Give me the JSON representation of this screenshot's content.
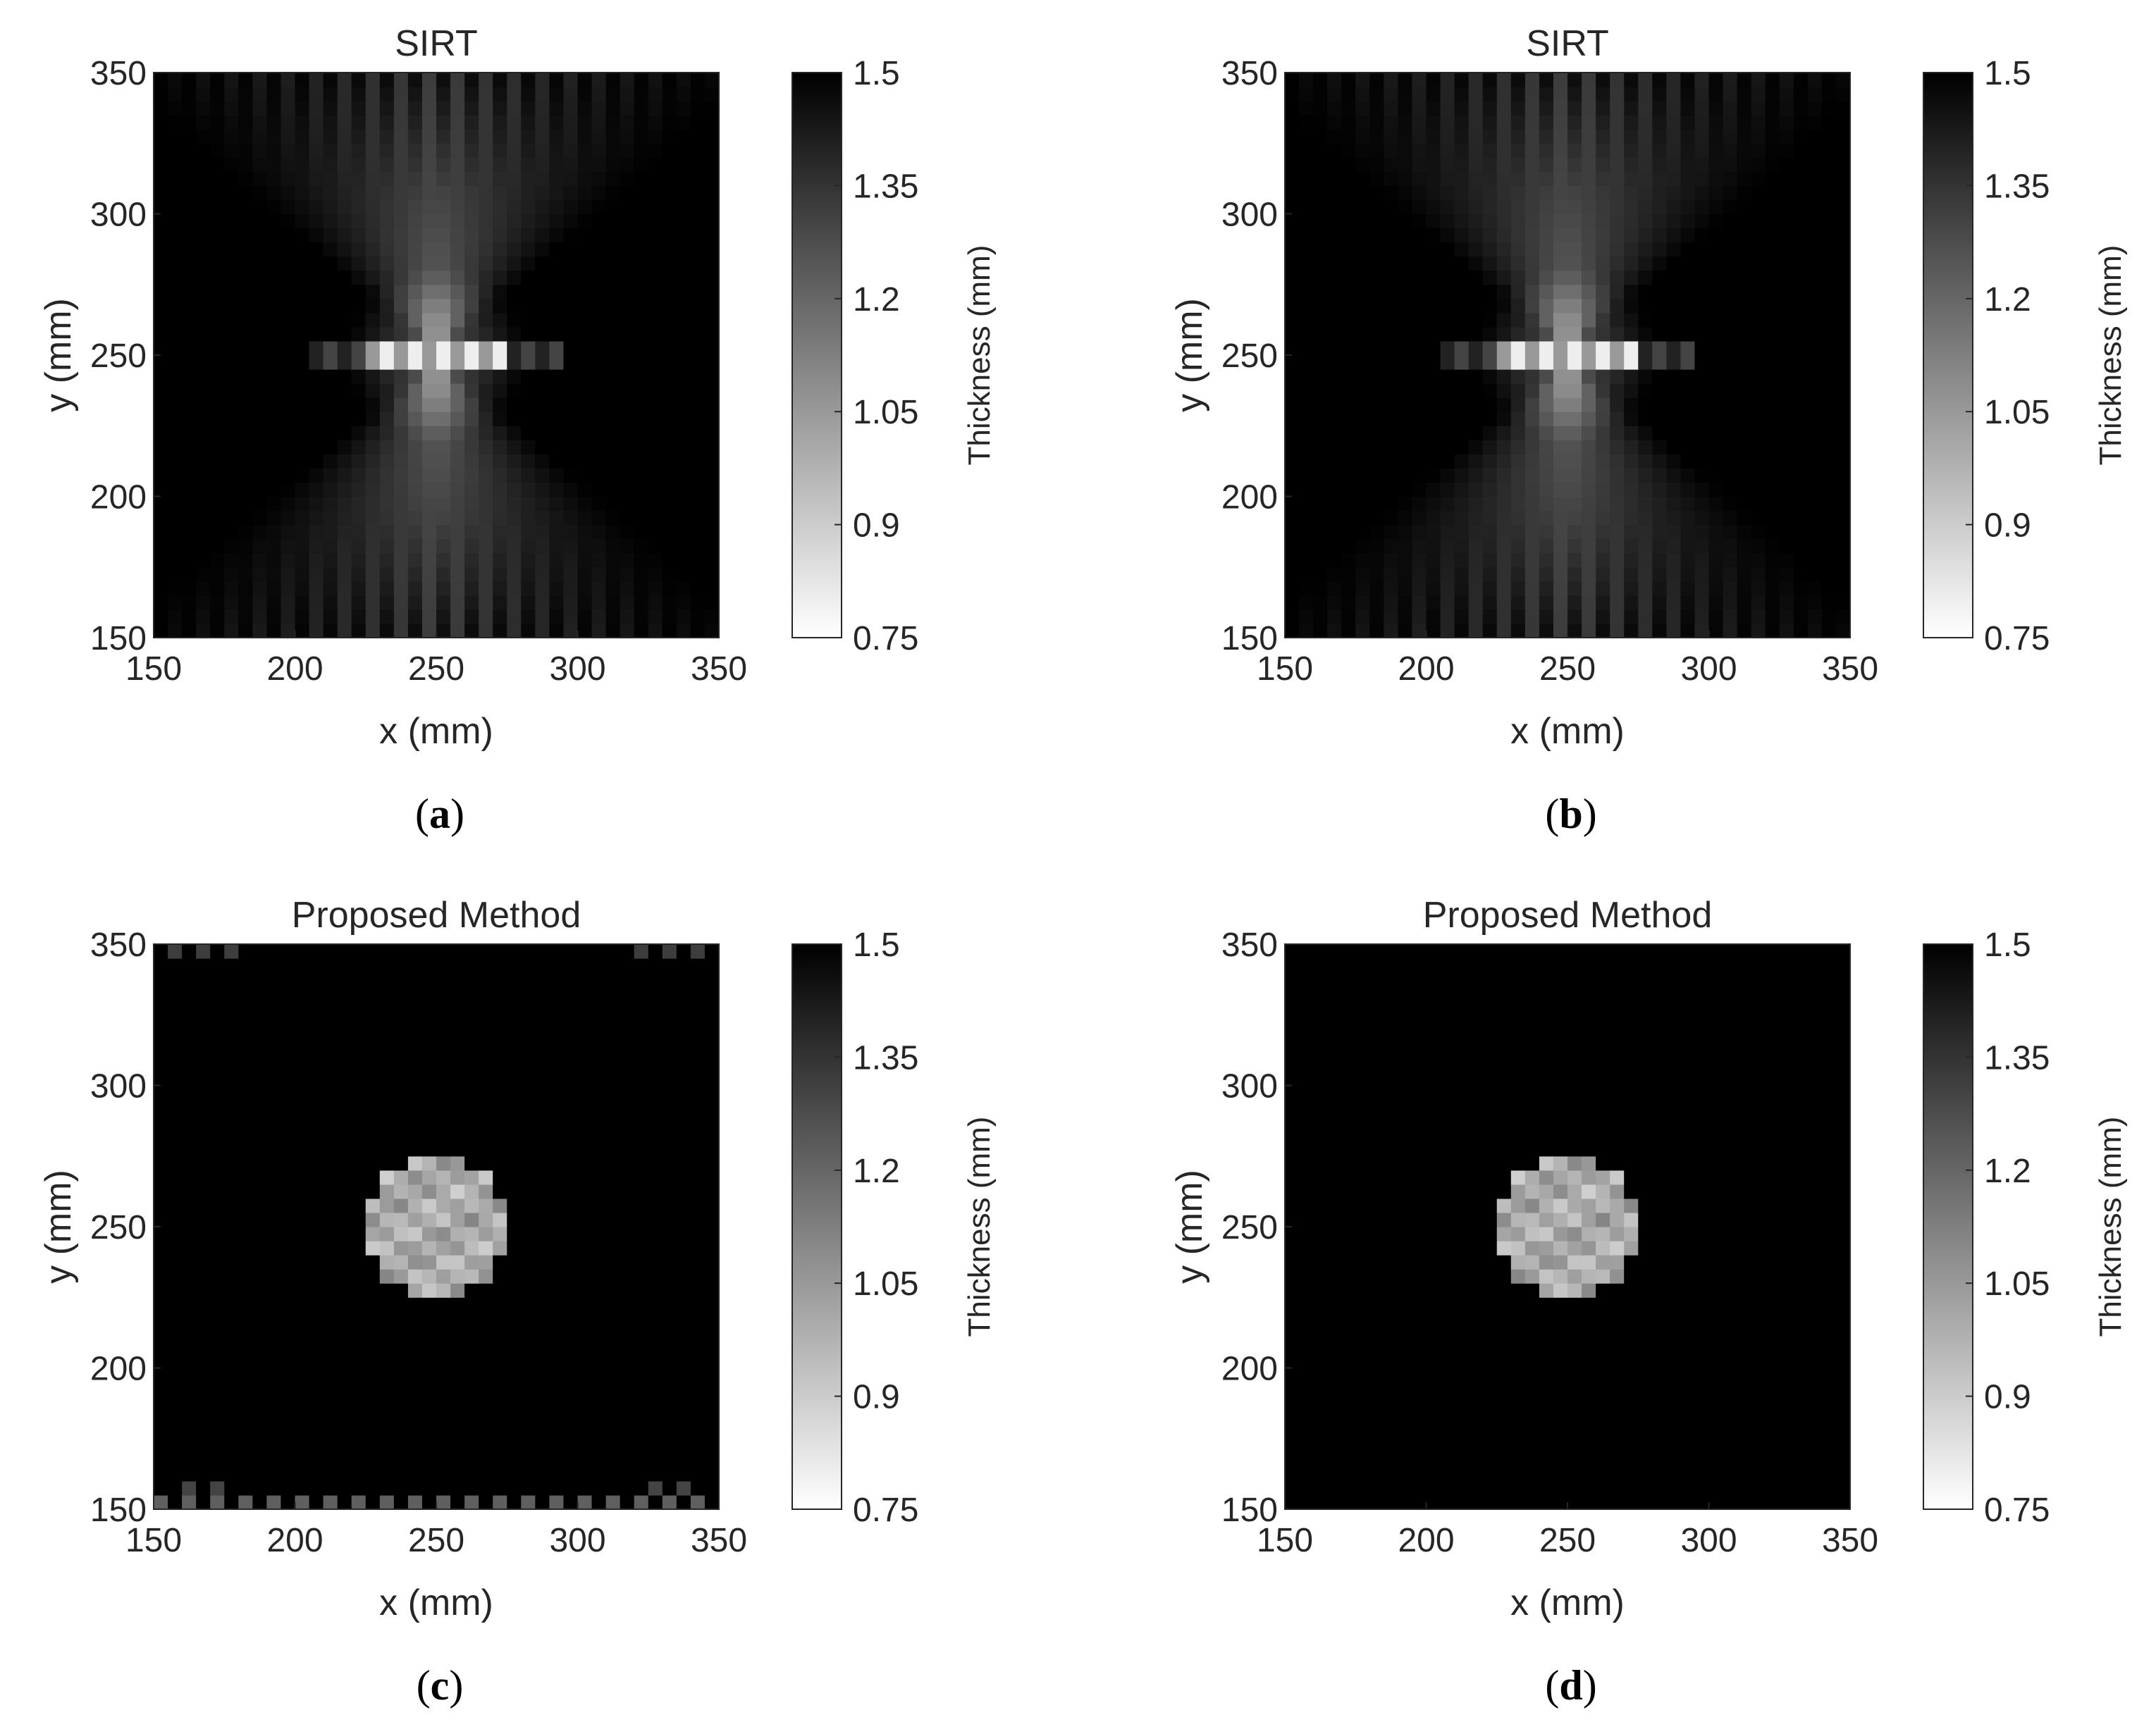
{
  "chart_data": [
    {
      "type": "heatmap",
      "panel": "a",
      "mode": "sirt",
      "title": "SIRT",
      "xlabel": "x (mm)",
      "ylabel": "y (mm)",
      "xlim": [
        150,
        350
      ],
      "ylim": [
        150,
        350
      ],
      "xticks": [
        "150",
        "200",
        "250",
        "300",
        "350"
      ],
      "yticks": [
        "150",
        "200",
        "250",
        "300",
        "350"
      ],
      "colorbar": {
        "label": "Thickness (mm)",
        "range": [
          0.75,
          1.5
        ],
        "ticks": [
          "0.75",
          "0.9",
          "1.05",
          "1.2",
          "1.35",
          "1.5"
        ],
        "colormap": "gray"
      },
      "features": {
        "background_thickness": 1.5,
        "defect_center": [
          250,
          250
        ],
        "defect_radius": 25,
        "defect_min_thickness": 0.95
      }
    },
    {
      "type": "heatmap",
      "panel": "b",
      "mode": "sirt",
      "title": "SIRT",
      "xlabel": "x (mm)",
      "ylabel": "y (mm)",
      "xlim": [
        150,
        350
      ],
      "ylim": [
        150,
        350
      ],
      "xticks": [
        "150",
        "200",
        "250",
        "300",
        "350"
      ],
      "yticks": [
        "150",
        "200",
        "250",
        "300",
        "350"
      ],
      "colorbar": {
        "label": "Thickness (mm)",
        "range": [
          0.75,
          1.5
        ],
        "ticks": [
          "0.75",
          "0.9",
          "1.05",
          "1.2",
          "1.35",
          "1.5"
        ],
        "colormap": "gray"
      },
      "features": {
        "background_thickness": 1.5,
        "defect_center": [
          250,
          250
        ],
        "defect_radius": 25,
        "defect_min_thickness": 1.0
      }
    },
    {
      "type": "heatmap",
      "panel": "c",
      "mode": "proposed",
      "title": "Proposed Method",
      "xlabel": "x (mm)",
      "ylabel": "y (mm)",
      "xlim": [
        150,
        350
      ],
      "ylim": [
        150,
        350
      ],
      "xticks": [
        "150",
        "200",
        "250",
        "300",
        "350"
      ],
      "yticks": [
        "150",
        "200",
        "250",
        "300",
        "350"
      ],
      "colorbar": {
        "label": "Thickness (mm)",
        "range": [
          0.75,
          1.5
        ],
        "ticks": [
          "0.75",
          "0.9",
          "1.05",
          "1.2",
          "1.35",
          "1.5"
        ],
        "colormap": "gray"
      },
      "features": {
        "background_thickness": 1.5,
        "defect_center": [
          250,
          250
        ],
        "defect_radius": 25,
        "defect_thickness": 1.0,
        "edge_artifacts": true
      }
    },
    {
      "type": "heatmap",
      "panel": "d",
      "mode": "proposed",
      "title": "Proposed Method",
      "xlabel": "x (mm)",
      "ylabel": "y (mm)",
      "xlim": [
        150,
        350
      ],
      "ylim": [
        150,
        350
      ],
      "xticks": [
        "150",
        "200",
        "250",
        "300",
        "350"
      ],
      "yticks": [
        "150",
        "200",
        "250",
        "300",
        "350"
      ],
      "colorbar": {
        "label": "Thickness (mm)",
        "range": [
          0.75,
          1.5
        ],
        "ticks": [
          "0.75",
          "0.9",
          "1.05",
          "1.2",
          "1.35",
          "1.5"
        ],
        "colormap": "gray"
      },
      "features": {
        "background_thickness": 1.5,
        "defect_center": [
          250,
          250
        ],
        "defect_radius": 25,
        "defect_thickness": 1.0,
        "edge_artifacts": false
      }
    }
  ],
  "panel_labels": [
    {
      "open": "(",
      "letter": "a",
      "close": ")"
    },
    {
      "open": "(",
      "letter": "b",
      "close": ")"
    },
    {
      "open": "(",
      "letter": "c",
      "close": ")"
    },
    {
      "open": "(",
      "letter": "d",
      "close": ")"
    }
  ]
}
